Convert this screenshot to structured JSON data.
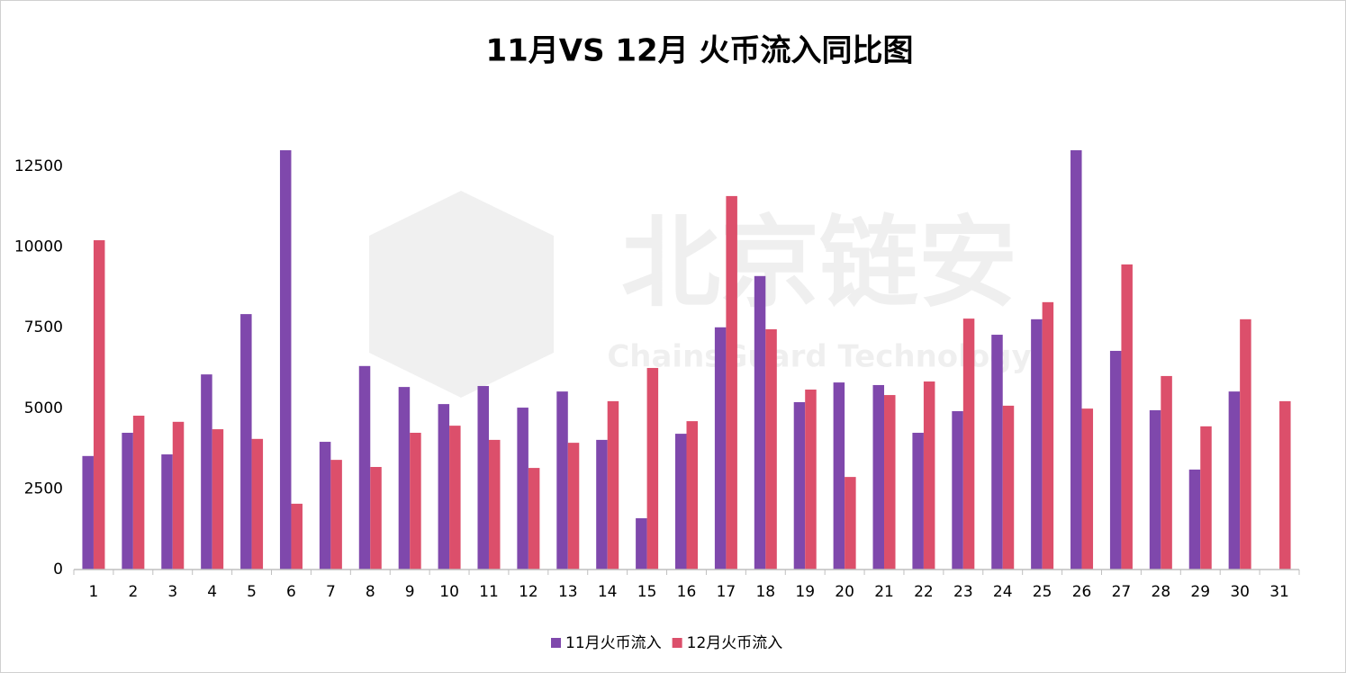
{
  "chart_data": {
    "type": "bar",
    "title": "11月VS 12月 火币流入同比图",
    "watermark": {
      "title": "北京链安",
      "subtitle": "ChainsGuard Technology"
    },
    "categories": [
      "1",
      "2",
      "3",
      "4",
      "5",
      "6",
      "7",
      "8",
      "9",
      "10",
      "11",
      "12",
      "13",
      "14",
      "15",
      "16",
      "17",
      "18",
      "19",
      "20",
      "21",
      "22",
      "23",
      "24",
      "25",
      "26",
      "27",
      "28",
      "29",
      "30",
      "31"
    ],
    "series": [
      {
        "name": "11月火币流入",
        "color": "#7f48ac",
        "values": [
          3520,
          4240,
          3570,
          6050,
          7920,
          13000,
          3960,
          6310,
          5660,
          5130,
          5690,
          5020,
          5520,
          4020,
          1590,
          4210,
          7510,
          9100,
          5190,
          5800,
          5720,
          4240,
          4910,
          7280,
          7760,
          13000,
          6780,
          4940,
          3100,
          5520,
          null
        ]
      },
      {
        "name": "12月火币流入",
        "color": "#dc4f6b",
        "values": [
          10210,
          4770,
          4580,
          4350,
          4050,
          2040,
          3400,
          3180,
          4240,
          4460,
          4020,
          3150,
          3930,
          5220,
          6250,
          4600,
          11580,
          7450,
          5580,
          2870,
          5410,
          5830,
          7780,
          5080,
          8290,
          4990,
          9460,
          6000,
          4440,
          7760,
          5220
        ]
      }
    ],
    "ylim": [
      0,
      13000
    ],
    "yticks": [
      0,
      2500,
      5000,
      7500,
      10000,
      12500
    ],
    "grid": false,
    "legend": "bottom"
  }
}
